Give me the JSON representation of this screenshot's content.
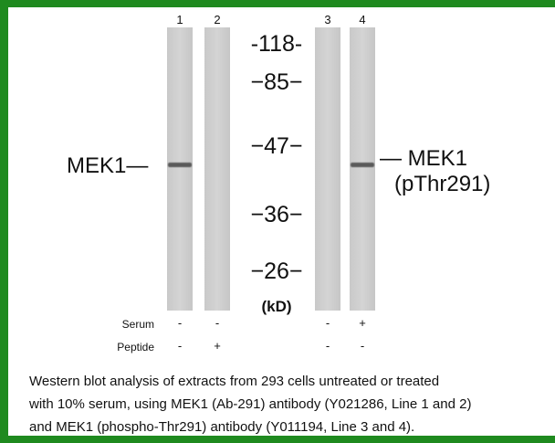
{
  "lanes": [
    "1",
    "2",
    "3",
    "4"
  ],
  "markers": [
    "-118-",
    "−85−",
    "−47−",
    "−36−",
    "−26−",
    "(kD)"
  ],
  "left_label": "MEK1—",
  "right_label": [
    "— MEK1",
    "(pThr291)"
  ],
  "rows": [
    {
      "label": "Serum",
      "signs": [
        "-",
        "-",
        "-",
        "+"
      ]
    },
    {
      "label": "Peptide",
      "signs": [
        "-",
        "+",
        "-",
        "-"
      ]
    }
  ],
  "caption": [
    "Western blot analysis of extracts from 293 cells untreated or treated",
    "with 10% serum, using MEK1 (Ab-291) antibody (Y021286, Line 1 and 2)",
    "and MEK1 (phospho-Thr291) antibody (Y011194, Line 3 and 4)."
  ]
}
